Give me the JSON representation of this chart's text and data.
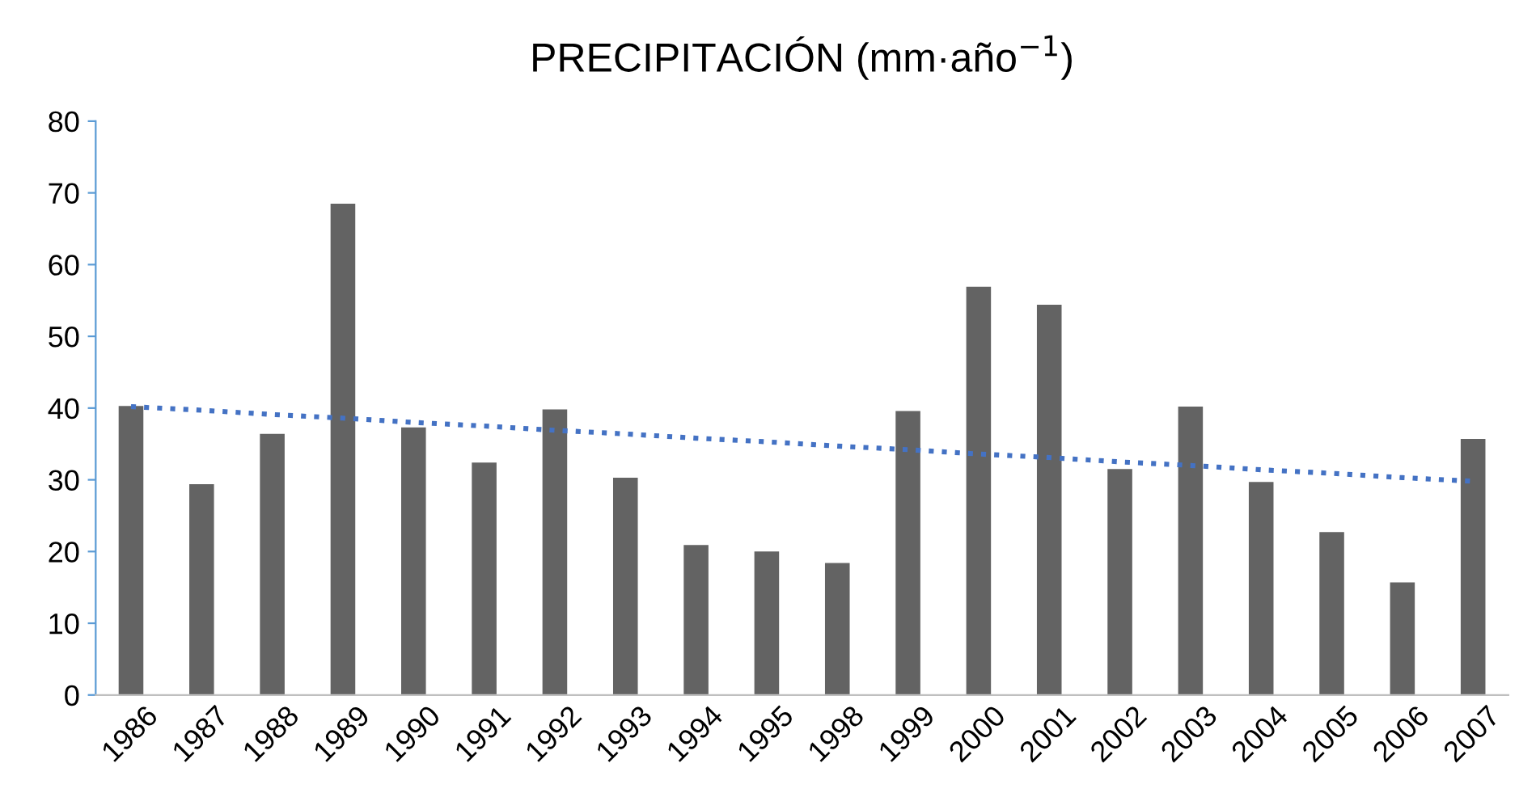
{
  "chart_data": {
    "type": "bar",
    "title": "PRECIPITACIÓN (mm·año$^{−1}$)",
    "categories": [
      "1986",
      "1987",
      "1988",
      "1989",
      "1990",
      "1991",
      "1992",
      "1993",
      "1994",
      "1995",
      "1998",
      "1999",
      "2000",
      "2001",
      "2002",
      "2003",
      "2004",
      "2005",
      "2006",
      "2007"
    ],
    "series": [
      {
        "color": "#636363",
        "values": [
          40.3,
          29.4,
          36.4,
          68.5,
          37.3,
          32.4,
          39.8,
          30.3,
          20.9,
          20.0,
          18.4,
          39.6,
          56.9,
          54.4,
          31.5,
          40.2,
          29.7,
          22.7,
          15.7,
          35.7
        ]
      },
      {
        "type": "line",
        "color": "#4472c4",
        "line_style": "dotted",
        "values": [
          40.2,
          39.7,
          39.1,
          38.6,
          38.0,
          37.5,
          36.9,
          36.4,
          35.8,
          35.3,
          34.7,
          34.2,
          33.6,
          33.1,
          32.5,
          32.0,
          31.4,
          30.9,
          30.3,
          29.8
        ]
      }
    ],
    "ylim": [
      0,
      80
    ],
    "yticks": [
      0,
      10,
      20,
      30,
      40,
      50,
      60,
      70,
      80
    ],
    "grid": false,
    "legend": false
  }
}
